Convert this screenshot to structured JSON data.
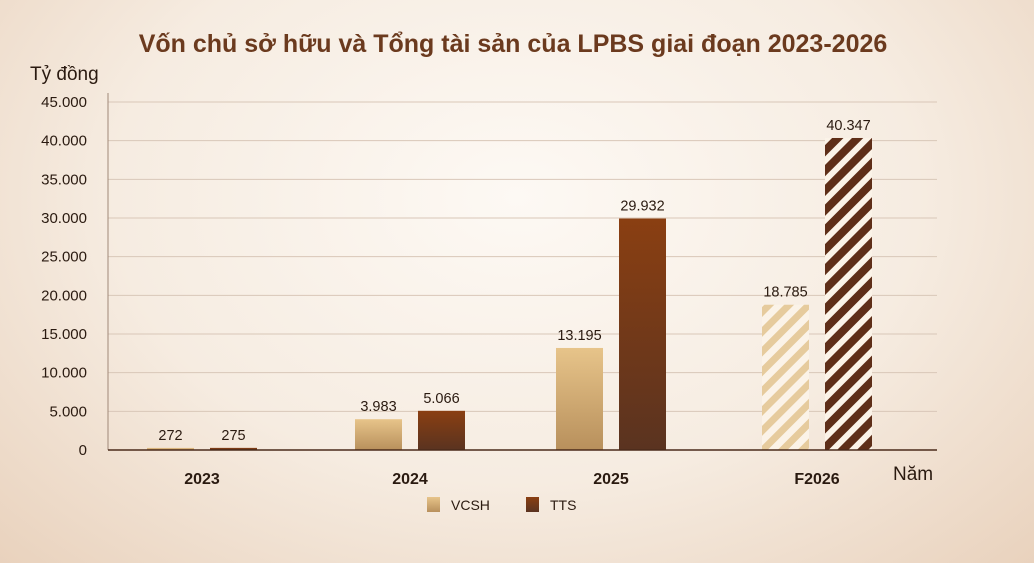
{
  "chart_data": {
    "type": "bar",
    "title": "Vốn chủ sở hữu và Tổng tài sản của LPBS giai đoạn 2023-2026",
    "ylabel": "Tỷ đồng",
    "xlabel": "Năm",
    "categories": [
      "2023",
      "2024",
      "2025",
      "F2026"
    ],
    "ylim": [
      0,
      45000
    ],
    "yticks": [
      0,
      5000,
      10000,
      15000,
      20000,
      25000,
      30000,
      35000,
      40000,
      45000
    ],
    "ytick_labels": [
      "0",
      "5.000",
      "10.000",
      "15.000",
      "20.000",
      "25.000",
      "30.000",
      "35.000",
      "40.000",
      "45.000"
    ],
    "grid": true,
    "legend_position": "bottom-center",
    "forecast_categories": [
      "F2026"
    ],
    "series": [
      {
        "name": "VCSH",
        "values": [
          272,
          3983,
          13195,
          18785
        ],
        "labels": [
          "272",
          "3.983",
          "13.195",
          "18.785"
        ],
        "color": "#d9b57a"
      },
      {
        "name": "TTS",
        "values": [
          275,
          5066,
          29932,
          40347
        ],
        "labels": [
          "275",
          "5.066",
          "29.932",
          "40.347"
        ],
        "color": "#7e3a14"
      }
    ]
  }
}
